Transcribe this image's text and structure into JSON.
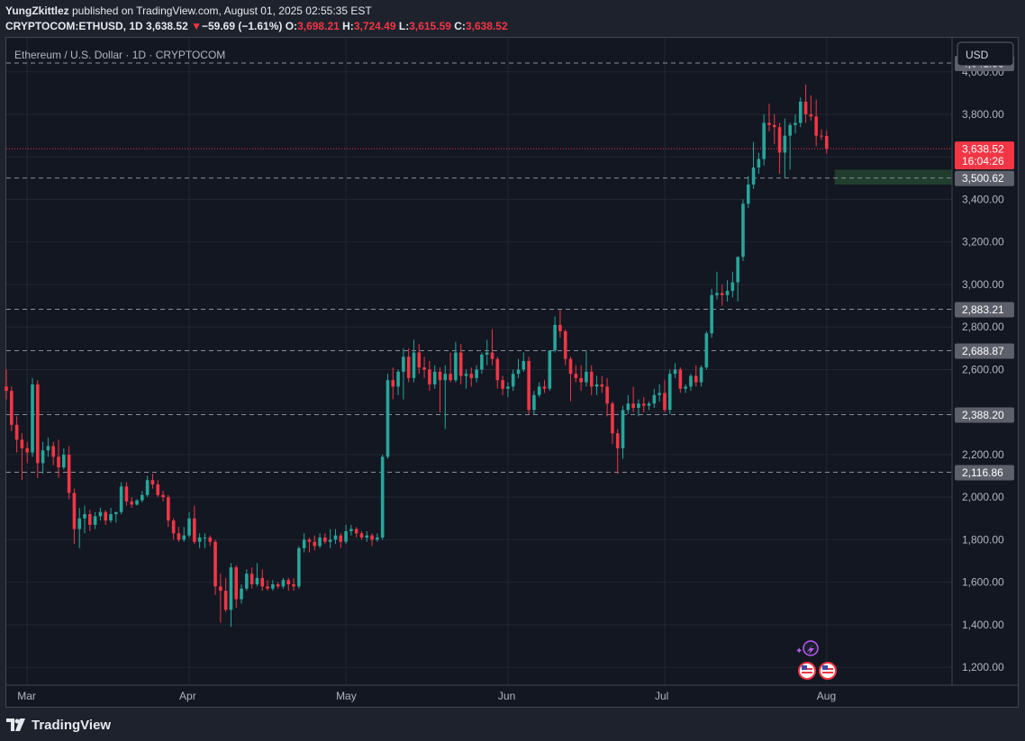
{
  "header": {
    "publisher_user": "YungZkittlez",
    "publisher_text": " published on TradingView.com, August 01, 2025 02:55:35 EST",
    "symbol": "CRYPTOCOM:ETHUSD, 1D",
    "last": "3,638.52",
    "change_arrow": "▼",
    "change": "−59.69 (−1.61%)",
    "o_label": "O:",
    "open": "3,698.21",
    "h_label": "H:",
    "high": "3,724.49",
    "l_label": "L:",
    "low": "3,615.59",
    "c_label": "C:",
    "close": "3,638.52"
  },
  "footer": {
    "brand": "TradingView"
  },
  "colors": {
    "up": "#26a69a",
    "down": "#f23645",
    "background": "#131722",
    "grid": "#232733",
    "level_line": "#8b8f9a",
    "zone": "#23442f"
  },
  "chart_data": {
    "type": "candlestick",
    "title": "Ethereum / U.S. Dollar · 1D · CRYPTOCOM",
    "currency_button": "USD",
    "ylim": [
      1120,
      4160
    ],
    "y_ticks": [
      "1,200.00",
      "1,400.00",
      "1,600.00",
      "1,800.00",
      "2,000.00",
      "2,200.00",
      "2,400.00",
      "2,600.00",
      "2,800.00",
      "3,000.00",
      "3,200.00",
      "3,400.00",
      "3,600.00",
      "3,800.00",
      "4,000.00"
    ],
    "y_tick_values": [
      1200,
      1400,
      1600,
      1800,
      2000,
      2200,
      2400,
      2600,
      2800,
      3000,
      3200,
      3400,
      3600,
      3800,
      4000
    ],
    "x_labels": [
      "Mar",
      "Apr",
      "May",
      "Jun",
      "Jul",
      "Aug"
    ],
    "x_label_dates": [
      "2025-03-01",
      "2025-04-01",
      "2025-05-01",
      "2025-06-01",
      "2025-07-01",
      "2025-08-01"
    ],
    "date_range": [
      "2025-02-25",
      "2025-08-25"
    ],
    "grid": true,
    "horizontal_levels": [
      4041.58,
      3500.62,
      2883.21,
      2688.87,
      2388.2,
      2116.86
    ],
    "horizontal_level_labels": [
      "4,041.58",
      "3,500.62",
      "2,883.21",
      "2,688.87",
      "2,388.20",
      "2,116.86"
    ],
    "current_price": 3638.52,
    "current_price_label": "3,638.52",
    "countdown": "16:04:26",
    "zone": {
      "from_date": "2025-08-01",
      "low": 3470,
      "high": 3540
    },
    "ohlc": [
      [
        "2025-02-25",
        2520,
        2600,
        2460,
        2500
      ],
      [
        "2025-02-26",
        2500,
        2520,
        2310,
        2340
      ],
      [
        "2025-02-27",
        2340,
        2380,
        2210,
        2270
      ],
      [
        "2025-02-28",
        2270,
        2300,
        2080,
        2230
      ],
      [
        "2025-03-01",
        2230,
        2260,
        2160,
        2210
      ],
      [
        "2025-03-02",
        2210,
        2560,
        2190,
        2530
      ],
      [
        "2025-03-03",
        2530,
        2550,
        2090,
        2160
      ],
      [
        "2025-03-04",
        2160,
        2260,
        2110,
        2220
      ],
      [
        "2025-03-05",
        2220,
        2280,
        2190,
        2240
      ],
      [
        "2025-03-06",
        2240,
        2260,
        2150,
        2190
      ],
      [
        "2025-03-07",
        2190,
        2270,
        2090,
        2140
      ],
      [
        "2025-03-08",
        2140,
        2230,
        2130,
        2200
      ],
      [
        "2025-03-09",
        2200,
        2240,
        1990,
        2020
      ],
      [
        "2025-03-10",
        2020,
        2040,
        1780,
        1850
      ],
      [
        "2025-03-11",
        1850,
        1950,
        1760,
        1900
      ],
      [
        "2025-03-12",
        1900,
        1960,
        1830,
        1920
      ],
      [
        "2025-03-13",
        1920,
        1940,
        1840,
        1870
      ],
      [
        "2025-03-14",
        1870,
        1930,
        1850,
        1910
      ],
      [
        "2025-03-15",
        1910,
        1950,
        1890,
        1930
      ],
      [
        "2025-03-16",
        1930,
        1940,
        1870,
        1890
      ],
      [
        "2025-03-17",
        1890,
        1950,
        1880,
        1920
      ],
      [
        "2025-03-18",
        1920,
        1930,
        1880,
        1930
      ],
      [
        "2025-03-19",
        1930,
        2070,
        1920,
        2050
      ],
      [
        "2025-03-20",
        2050,
        2070,
        1960,
        1980
      ],
      [
        "2025-03-21",
        1980,
        2000,
        1950,
        1965
      ],
      [
        "2025-03-22",
        1965,
        1990,
        1960,
        1985
      ],
      [
        "2025-03-23",
        1985,
        2030,
        1975,
        2010
      ],
      [
        "2025-03-24",
        2010,
        2100,
        2000,
        2080
      ],
      [
        "2025-03-25",
        2080,
        2110,
        2040,
        2060
      ],
      [
        "2025-03-26",
        2060,
        2080,
        2000,
        2010
      ],
      [
        "2025-03-27",
        2010,
        2030,
        1980,
        2000
      ],
      [
        "2025-03-28",
        2000,
        2010,
        1860,
        1890
      ],
      [
        "2025-03-29",
        1890,
        1900,
        1800,
        1830
      ],
      [
        "2025-03-30",
        1830,
        1860,
        1790,
        1800
      ],
      [
        "2025-03-31",
        1800,
        1860,
        1790,
        1820
      ],
      [
        "2025-04-01",
        1820,
        1930,
        1810,
        1900
      ],
      [
        "2025-04-02",
        1900,
        1960,
        1780,
        1790
      ],
      [
        "2025-04-03",
        1790,
        1830,
        1760,
        1810
      ],
      [
        "2025-04-04",
        1810,
        1830,
        1760,
        1810
      ],
      [
        "2025-04-05",
        1810,
        1820,
        1770,
        1790
      ],
      [
        "2025-04-06",
        1790,
        1800,
        1540,
        1580
      ],
      [
        "2025-04-07",
        1580,
        1640,
        1410,
        1560
      ],
      [
        "2025-04-08",
        1560,
        1620,
        1460,
        1470
      ],
      [
        "2025-04-09",
        1470,
        1690,
        1390,
        1670
      ],
      [
        "2025-04-10",
        1670,
        1680,
        1480,
        1520
      ],
      [
        "2025-04-11",
        1520,
        1590,
        1500,
        1570
      ],
      [
        "2025-04-12",
        1570,
        1660,
        1560,
        1640
      ],
      [
        "2025-04-13",
        1640,
        1670,
        1570,
        1590
      ],
      [
        "2025-04-14",
        1590,
        1690,
        1580,
        1620
      ],
      [
        "2025-04-15",
        1620,
        1660,
        1560,
        1580
      ],
      [
        "2025-04-16",
        1580,
        1610,
        1560,
        1570
      ],
      [
        "2025-04-17",
        1570,
        1610,
        1560,
        1590
      ],
      [
        "2025-04-18",
        1590,
        1600,
        1570,
        1580
      ],
      [
        "2025-04-19",
        1580,
        1620,
        1570,
        1610
      ],
      [
        "2025-04-20",
        1610,
        1620,
        1560,
        1590
      ],
      [
        "2025-04-21",
        1590,
        1620,
        1560,
        1580
      ],
      [
        "2025-04-22",
        1580,
        1770,
        1570,
        1760
      ],
      [
        "2025-04-23",
        1760,
        1830,
        1740,
        1800
      ],
      [
        "2025-04-24",
        1800,
        1810,
        1740,
        1790
      ],
      [
        "2025-04-25",
        1790,
        1820,
        1750,
        1770
      ],
      [
        "2025-04-26",
        1770,
        1830,
        1760,
        1810
      ],
      [
        "2025-04-27",
        1810,
        1830,
        1780,
        1790
      ],
      [
        "2025-04-28",
        1790,
        1850,
        1760,
        1800
      ],
      [
        "2025-04-29",
        1800,
        1850,
        1780,
        1820
      ],
      [
        "2025-04-30",
        1820,
        1830,
        1760,
        1790
      ],
      [
        "2025-05-01",
        1790,
        1870,
        1780,
        1840
      ],
      [
        "2025-05-02",
        1840,
        1870,
        1820,
        1850
      ],
      [
        "2025-05-03",
        1850,
        1860,
        1810,
        1830
      ],
      [
        "2025-05-04",
        1830,
        1840,
        1800,
        1810
      ],
      [
        "2025-05-05",
        1810,
        1840,
        1790,
        1820
      ],
      [
        "2025-05-06",
        1820,
        1830,
        1770,
        1800
      ],
      [
        "2025-05-07",
        1800,
        1830,
        1790,
        1810
      ],
      [
        "2025-05-08",
        1810,
        2200,
        1800,
        2190
      ],
      [
        "2025-05-09",
        2190,
        2580,
        2180,
        2550
      ],
      [
        "2025-05-10",
        2550,
        2610,
        2460,
        2520
      ],
      [
        "2025-05-11",
        2520,
        2600,
        2480,
        2590
      ],
      [
        "2025-05-12",
        2590,
        2700,
        2460,
        2660
      ],
      [
        "2025-05-13",
        2660,
        2700,
        2540,
        2560
      ],
      [
        "2025-05-14",
        2560,
        2740,
        2540,
        2680
      ],
      [
        "2025-05-15",
        2680,
        2720,
        2580,
        2610
      ],
      [
        "2025-05-16",
        2610,
        2660,
        2560,
        2600
      ],
      [
        "2025-05-17",
        2600,
        2640,
        2500,
        2530
      ],
      [
        "2025-05-18",
        2530,
        2620,
        2510,
        2590
      ],
      [
        "2025-05-19",
        2590,
        2610,
        2400,
        2550
      ],
      [
        "2025-05-20",
        2550,
        2620,
        2320,
        2580
      ],
      [
        "2025-05-21",
        2580,
        2680,
        2540,
        2550
      ],
      [
        "2025-05-22",
        2550,
        2730,
        2540,
        2680
      ],
      [
        "2025-05-23",
        2680,
        2720,
        2530,
        2570
      ],
      [
        "2025-05-24",
        2570,
        2600,
        2510,
        2580
      ],
      [
        "2025-05-25",
        2580,
        2610,
        2520,
        2560
      ],
      [
        "2025-05-26",
        2560,
        2620,
        2540,
        2600
      ],
      [
        "2025-05-27",
        2600,
        2680,
        2580,
        2670
      ],
      [
        "2025-05-28",
        2670,
        2740,
        2620,
        2680
      ],
      [
        "2025-05-29",
        2680,
        2790,
        2620,
        2650
      ],
      [
        "2025-05-30",
        2650,
        2660,
        2510,
        2550
      ],
      [
        "2025-05-31",
        2550,
        2570,
        2480,
        2510
      ],
      [
        "2025-06-01",
        2510,
        2540,
        2470,
        2520
      ],
      [
        "2025-06-02",
        2520,
        2600,
        2500,
        2580
      ],
      [
        "2025-06-03",
        2580,
        2650,
        2560,
        2600
      ],
      [
        "2025-06-04",
        2600,
        2680,
        2590,
        2640
      ],
      [
        "2025-06-05",
        2640,
        2660,
        2390,
        2410
      ],
      [
        "2025-06-06",
        2410,
        2500,
        2390,
        2480
      ],
      [
        "2025-06-07",
        2480,
        2540,
        2470,
        2520
      ],
      [
        "2025-06-08",
        2520,
        2550,
        2490,
        2510
      ],
      [
        "2025-06-09",
        2510,
        2680,
        2500,
        2690
      ],
      [
        "2025-06-10",
        2690,
        2850,
        2680,
        2810
      ],
      [
        "2025-06-11",
        2810,
        2880,
        2750,
        2780
      ],
      [
        "2025-06-12",
        2780,
        2790,
        2620,
        2650
      ],
      [
        "2025-06-13",
        2650,
        2660,
        2450,
        2580
      ],
      [
        "2025-06-14",
        2580,
        2620,
        2540,
        2560
      ],
      [
        "2025-06-15",
        2560,
        2620,
        2500,
        2540
      ],
      [
        "2025-06-16",
        2540,
        2690,
        2520,
        2590
      ],
      [
        "2025-06-17",
        2590,
        2620,
        2480,
        2520
      ],
      [
        "2025-06-18",
        2520,
        2570,
        2480,
        2530
      ],
      [
        "2025-06-19",
        2530,
        2570,
        2490,
        2520
      ],
      [
        "2025-06-20",
        2520,
        2560,
        2380,
        2440
      ],
      [
        "2025-06-21",
        2440,
        2450,
        2250,
        2300
      ],
      [
        "2025-06-22",
        2300,
        2320,
        2110,
        2230
      ],
      [
        "2025-06-23",
        2230,
        2430,
        2180,
        2410
      ],
      [
        "2025-06-24",
        2410,
        2480,
        2390,
        2440
      ],
      [
        "2025-06-25",
        2440,
        2520,
        2400,
        2420
      ],
      [
        "2025-06-26",
        2420,
        2460,
        2380,
        2440
      ],
      [
        "2025-06-27",
        2440,
        2470,
        2400,
        2430
      ],
      [
        "2025-06-28",
        2430,
        2450,
        2410,
        2440
      ],
      [
        "2025-06-29",
        2440,
        2510,
        2420,
        2480
      ],
      [
        "2025-06-30",
        2480,
        2530,
        2450,
        2490
      ],
      [
        "2025-07-01",
        2490,
        2550,
        2400,
        2410
      ],
      [
        "2025-07-02",
        2410,
        2600,
        2390,
        2580
      ],
      [
        "2025-07-03",
        2580,
        2630,
        2560,
        2600
      ],
      [
        "2025-07-04",
        2600,
        2610,
        2490,
        2510
      ],
      [
        "2025-07-05",
        2510,
        2530,
        2490,
        2520
      ],
      [
        "2025-07-06",
        2520,
        2580,
        2500,
        2570
      ],
      [
        "2025-07-07",
        2570,
        2620,
        2520,
        2540
      ],
      [
        "2025-07-08",
        2540,
        2620,
        2520,
        2610
      ],
      [
        "2025-07-09",
        2610,
        2780,
        2600,
        2770
      ],
      [
        "2025-07-10",
        2770,
        2980,
        2750,
        2950
      ],
      [
        "2025-07-11",
        2950,
        3060,
        2930,
        2960
      ],
      [
        "2025-07-12",
        2960,
        3000,
        2900,
        2950
      ],
      [
        "2025-07-13",
        2950,
        3020,
        2920,
        2970
      ],
      [
        "2025-07-14",
        2970,
        3060,
        2940,
        3010
      ],
      [
        "2025-07-15",
        3010,
        3120,
        2920,
        3130
      ],
      [
        "2025-07-16",
        3130,
        3400,
        3110,
        3380
      ],
      [
        "2025-07-17",
        3380,
        3510,
        3360,
        3470
      ],
      [
        "2025-07-18",
        3470,
        3670,
        3450,
        3550
      ],
      [
        "2025-07-19",
        3550,
        3620,
        3520,
        3590
      ],
      [
        "2025-07-20",
        3590,
        3800,
        3560,
        3760
      ],
      [
        "2025-07-21",
        3760,
        3850,
        3720,
        3750
      ],
      [
        "2025-07-22",
        3750,
        3800,
        3660,
        3740
      ],
      [
        "2025-07-23",
        3740,
        3760,
        3520,
        3620
      ],
      [
        "2025-07-24",
        3620,
        3780,
        3500,
        3700
      ],
      [
        "2025-07-25",
        3700,
        3760,
        3540,
        3750
      ],
      [
        "2025-07-26",
        3750,
        3800,
        3710,
        3760
      ],
      [
        "2025-07-27",
        3760,
        3880,
        3740,
        3860
      ],
      [
        "2025-07-28",
        3860,
        3940,
        3760,
        3800
      ],
      [
        "2025-07-29",
        3800,
        3890,
        3770,
        3790
      ],
      [
        "2025-07-30",
        3790,
        3870,
        3650,
        3700
      ],
      [
        "2025-07-31",
        3700,
        3730,
        3680,
        3698
      ],
      [
        "2025-08-01",
        3698.21,
        3724.49,
        3615.59,
        3638.52
      ]
    ]
  }
}
